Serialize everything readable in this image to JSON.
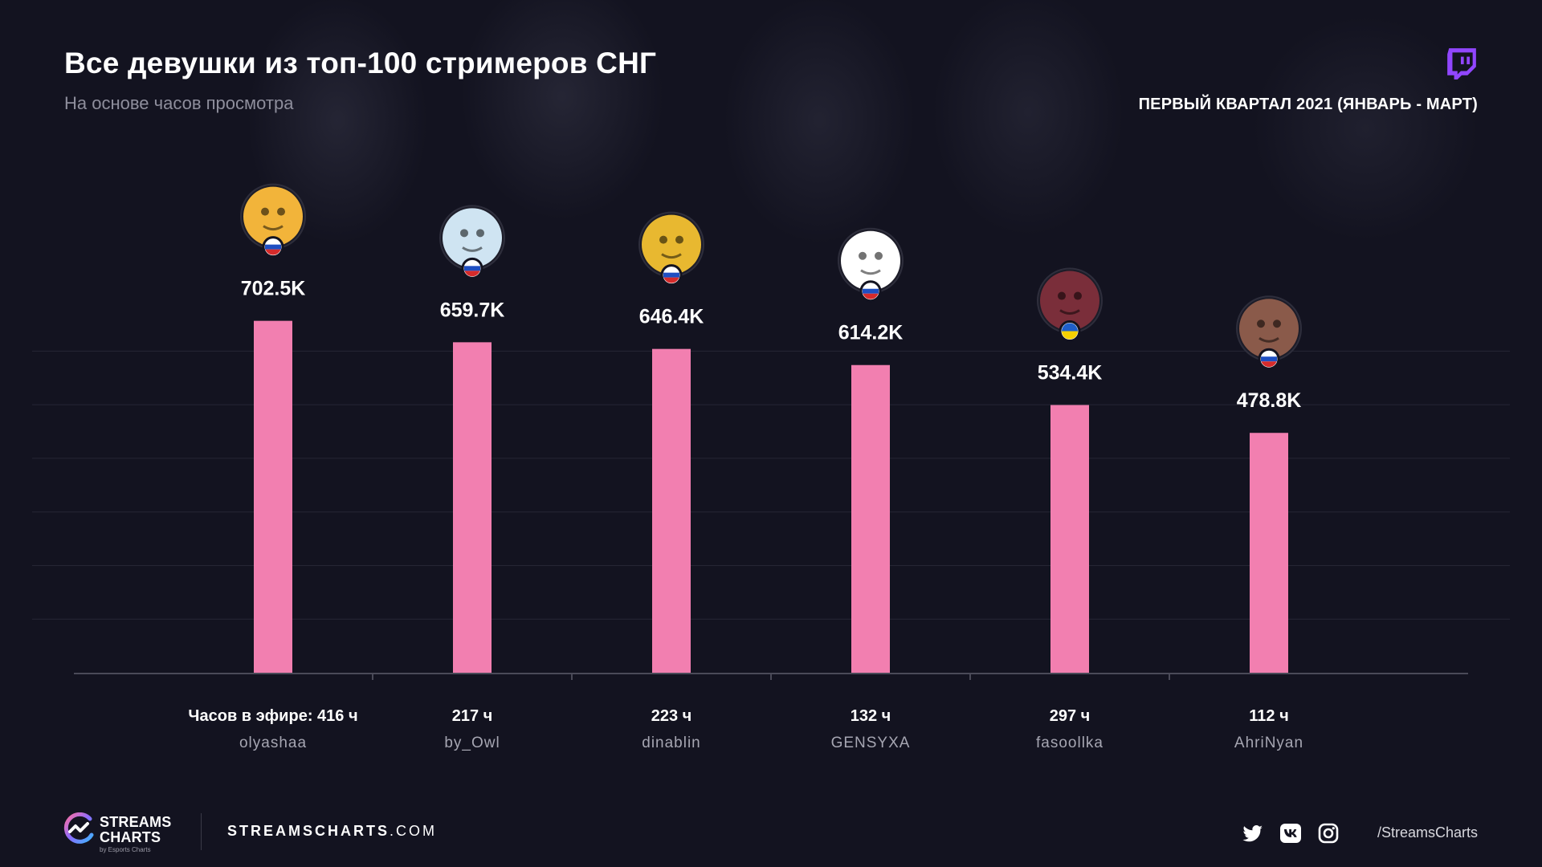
{
  "header": {
    "title": "Все девушки из топ-100 стримеров СНГ",
    "subtitle": "На основе часов просмотра",
    "period": "ПЕРВЫЙ КВАРТАЛ 2021 (ЯНВАРЬ - МАРТ)",
    "platform_icon": "twitch-icon"
  },
  "chart_data": {
    "type": "bar",
    "title": "Все девушки из топ-100 стримеров СНГ",
    "subtitle": "На основе часов просмотра",
    "categories": [
      "olyashaa",
      "by_Owl",
      "dinablin",
      "GENSYXA",
      "fasoollka",
      "AhriNyan"
    ],
    "values": [
      702500,
      659700,
      646400,
      614200,
      534400,
      478800
    ],
    "value_labels": [
      "702.5K",
      "659.7K",
      "646.4K",
      "614.2K",
      "534.4K",
      "478.8K"
    ],
    "hours_labels": [
      "Часов в эфире: 416 ч",
      "217 ч",
      "223 ч",
      "132 ч",
      "297 ч",
      "112 ч"
    ],
    "hours_aired": [
      416,
      217,
      223,
      132,
      297,
      112
    ],
    "flags": [
      "russia",
      "russia",
      "russia",
      "russia",
      "ukraine",
      "russia"
    ],
    "avatar_colors": [
      "#f2b43a",
      "#cfe4f2",
      "#e8b830",
      "#ffffff",
      "#7a2e3a",
      "#8a5a4a"
    ],
    "ylim": [
      0,
      800000
    ],
    "grid": true,
    "bar_color": "#f27fb0"
  },
  "footer": {
    "brand_line1": "STREAMS",
    "brand_line2": "CHARTS",
    "brand_sub": "by Esports Charts",
    "site_bold": "STREAMSCHARTS",
    "site_rest": ".COM",
    "social_icons": [
      "twitter-icon",
      "vk-icon",
      "instagram-icon"
    ],
    "handle": "/StreamsCharts"
  },
  "colors": {
    "background": "#131320",
    "bar": "#f27fb0",
    "twitch": "#9146ff",
    "muted_text": "#8e8e9c"
  }
}
